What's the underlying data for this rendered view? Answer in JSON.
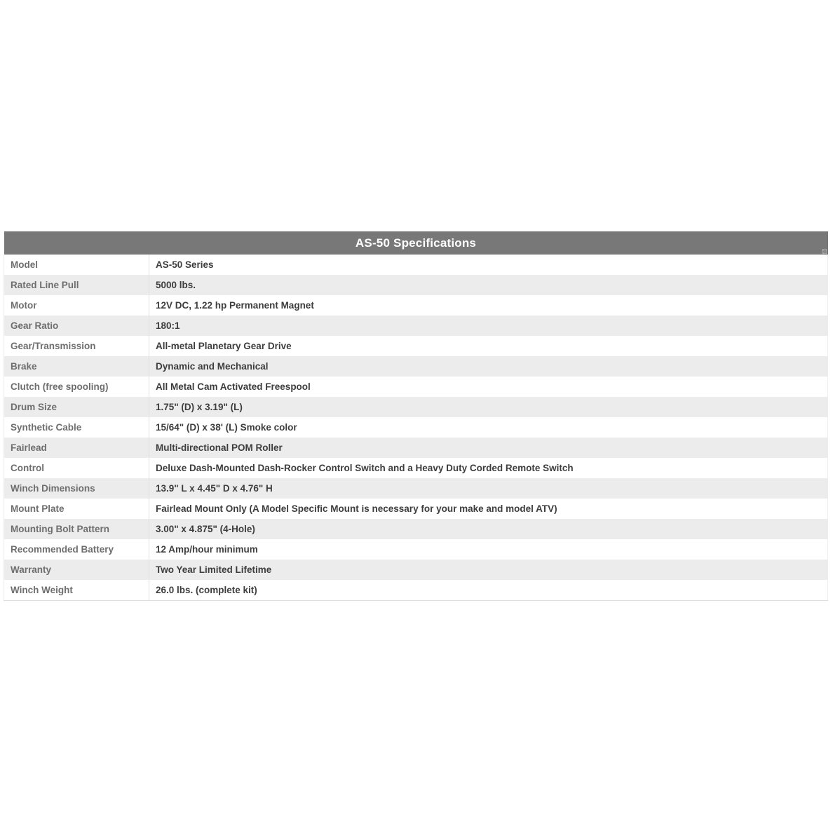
{
  "table": {
    "title": "AS-50 Specifications",
    "colors": {
      "header_bg": "#787878",
      "header_text": "#ffffff",
      "stripe": "#ececec",
      "label_text": "#6e6e6e",
      "value_text": "#3d3d3d"
    },
    "rows": [
      {
        "label": "Model",
        "value": "AS-50 Series"
      },
      {
        "label": "Rated Line Pull",
        "value": "5000 lbs."
      },
      {
        "label": "Motor",
        "value": "12V DC, 1.22 hp Permanent Magnet"
      },
      {
        "label": "Gear Ratio",
        "value": "180:1"
      },
      {
        "label": "Gear/Transmission",
        "value": "All-metal Planetary Gear Drive"
      },
      {
        "label": "Brake",
        "value": "Dynamic and Mechanical"
      },
      {
        "label": "Clutch (free spooling)",
        "value": "All Metal Cam Activated Freespool"
      },
      {
        "label": "Drum Size",
        "value": "1.75\" (D) x 3.19\" (L)"
      },
      {
        "label": "Synthetic Cable",
        "value": "15/64\" (D) x 38' (L) Smoke color"
      },
      {
        "label": "Fairlead",
        "value": "Multi-directional POM Roller"
      },
      {
        "label": "Control",
        "value": "Deluxe Dash-Mounted Dash-Rocker Control Switch and a Heavy Duty Corded Remote Switch"
      },
      {
        "label": "Winch Dimensions",
        "value": "13.9\" L x 4.45\" D x 4.76\" H"
      },
      {
        "label": "Mount Plate",
        "value": "Fairlead Mount Only (A Model Specific Mount is necessary for your make and model ATV)"
      },
      {
        "label": "Mounting Bolt Pattern",
        "value": "3.00\" x 4.875\" (4-Hole)"
      },
      {
        "label": "Recommended Battery",
        "value": "12 Amp/hour minimum"
      },
      {
        "label": "Warranty",
        "value": "Two Year Limited Lifetime"
      },
      {
        "label": "Winch Weight",
        "value": "26.0 lbs. (complete kit)"
      }
    ]
  }
}
